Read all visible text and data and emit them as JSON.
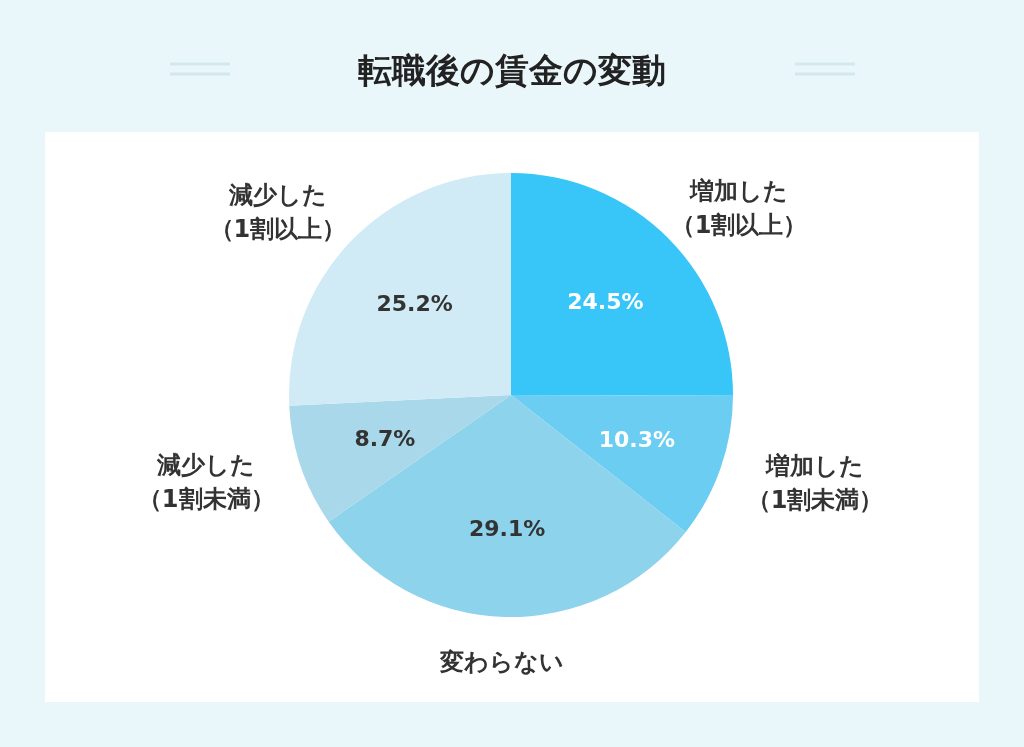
{
  "chart_data": {
    "type": "pie",
    "title": "転職後の賃金の変動",
    "categories": [
      "増加した（1割以上）",
      "増加した（1割未満）",
      "変わらない",
      "減少した（1割未満）",
      "減少した（1割以上）"
    ],
    "values": [
      24.5,
      10.3,
      29.1,
      8.7,
      25.2
    ],
    "value_labels": [
      "24.5%",
      "10.3%",
      "29.1%",
      "8.7%",
      "25.2%"
    ],
    "colors": [
      "#38c5f7",
      "#6acdf1",
      "#8dd3ec",
      "#a8d8e9",
      "#d0ebf5"
    ],
    "legend": false
  }
}
